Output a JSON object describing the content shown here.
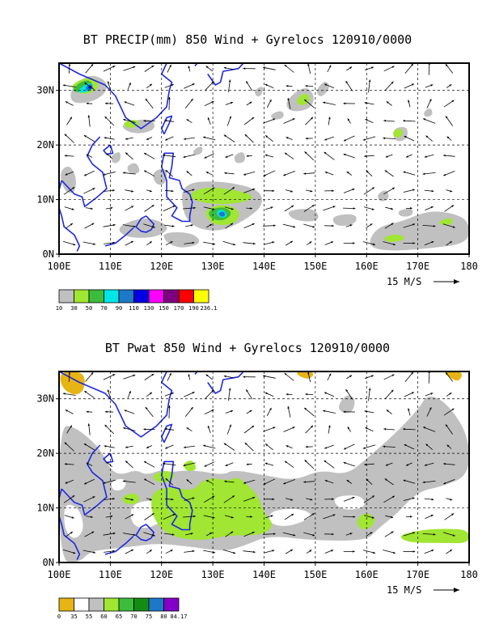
{
  "panels": [
    {
      "title": "BT PRECIP(mm) 850 Wind + Gyrelocs 120910/0000",
      "field": "precip",
      "lat_ticks": [
        "0N",
        "10N",
        "20N",
        "30N"
      ],
      "lon_ticks": [
        "100E",
        "110E",
        "120E",
        "130E",
        "140E",
        "150E",
        "160E",
        "170E",
        "180"
      ],
      "wind_reference": "15 M/S",
      "colorbar": {
        "colors": [
          "#c0c0c0",
          "#a0e632",
          "#3cbc3c",
          "#00e6e6",
          "#1e78c8",
          "#0000e0",
          "#ff00ff",
          "#7e0080",
          "#ff0000",
          "#ffff00"
        ],
        "labels": [
          "10",
          "30",
          "50",
          "70",
          "90",
          "110",
          "130",
          "150",
          "170",
          "190",
          "236.1"
        ]
      }
    },
    {
      "title": "BT Pwat 850 Wind + Gyrelocs 120910/0000",
      "field": "pwat",
      "lat_ticks": [
        "0N",
        "10N",
        "20N",
        "30N"
      ],
      "lon_ticks": [
        "100E",
        "110E",
        "120E",
        "130E",
        "140E",
        "150E",
        "160E",
        "170E",
        "180"
      ],
      "wind_reference": "15 M/S",
      "colorbar": {
        "colors": [
          "#e6b414",
          "#ffffff",
          "#c0c0c0",
          "#a0e632",
          "#3cbc3c",
          "#148c14",
          "#1e78c8",
          "#8200c8"
        ],
        "labels": [
          "0",
          "35",
          "55",
          "60",
          "65",
          "70",
          "75",
          "80",
          "84.17"
        ]
      }
    }
  ],
  "colors": {
    "coastline": "#1e28dc",
    "frame": "#000000"
  }
}
